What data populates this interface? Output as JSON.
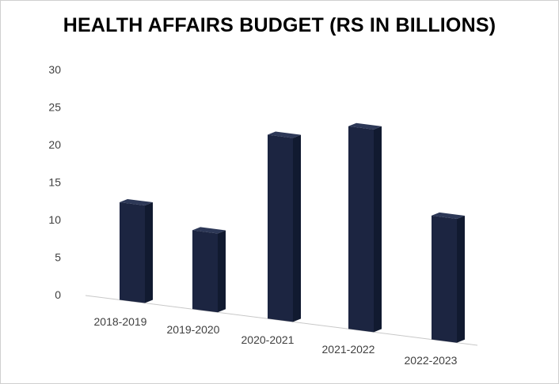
{
  "chart_data": {
    "type": "bar",
    "title": "HEALTH AFFAIRS BUDGET (RS IN BILLIONS)",
    "xlabel": "",
    "ylabel": "",
    "categories": [
      "2018-2019",
      "2019-2020",
      "2020-2021",
      "2021-2022",
      "2022-2023"
    ],
    "values": [
      13,
      10.5,
      24.5,
      27,
      16.5
    ],
    "ylim": [
      0,
      30
    ],
    "yticks": [
      "0",
      "5",
      "10",
      "15",
      "20",
      "25",
      "30"
    ],
    "grid": false,
    "legend": "none",
    "bar_color": "#1c2541",
    "style": "3d-column"
  }
}
